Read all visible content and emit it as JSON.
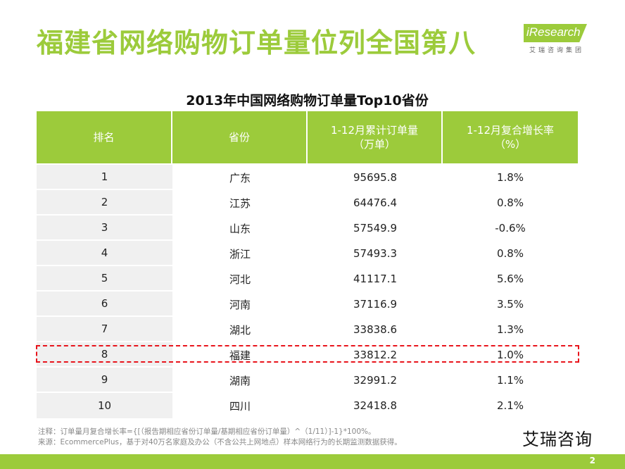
{
  "slide": {
    "title": "福建省网络购物订单量位列全国第八"
  },
  "logo": {
    "brand": "iResearch",
    "subtitle": "艾瑞咨询集团"
  },
  "table": {
    "title": "2013年中国网络购物订单量Top10省份",
    "headers": [
      [
        "排名"
      ],
      [
        "省份"
      ],
      [
        "1-12月累计订单量",
        "（万单）"
      ],
      [
        "1-12月复合增长率",
        "（%）"
      ]
    ],
    "rows": [
      [
        "1",
        "广东",
        "95695.8",
        "1.8%"
      ],
      [
        "2",
        "江苏",
        "64476.4",
        "0.8%"
      ],
      [
        "3",
        "山东",
        "57549.9",
        "-0.6%"
      ],
      [
        "4",
        "浙江",
        "57493.3",
        "0.8%"
      ],
      [
        "5",
        "河北",
        "41117.1",
        "5.6%"
      ],
      [
        "6",
        "河南",
        "37116.9",
        "3.5%"
      ],
      [
        "7",
        "湖北",
        "33838.6",
        "1.3%"
      ],
      [
        "8",
        "福建",
        "33812.2",
        "1.0%"
      ],
      [
        "9",
        "湖南",
        "32991.2",
        "1.1%"
      ],
      [
        "10",
        "四川",
        "32418.8",
        "2.1%"
      ]
    ],
    "highlight_color": "#e8141c"
  },
  "notes": {
    "line1": "注释：订单量月复合增长率={[（报告期相应省份订单量/基期相应省份订单量）^（1/11）]-1}*100%。",
    "line2": "来源：EcommercePlus，基于对40万名家庭及办公（不含公共上网地点）样本网络行为的长期监测数据获得。"
  },
  "watermark": "艾瑞咨询",
  "footer": {
    "page_number": "2"
  },
  "colors": {
    "accent": "#9ccb3b",
    "rank_cell": "#f0f0f0"
  }
}
